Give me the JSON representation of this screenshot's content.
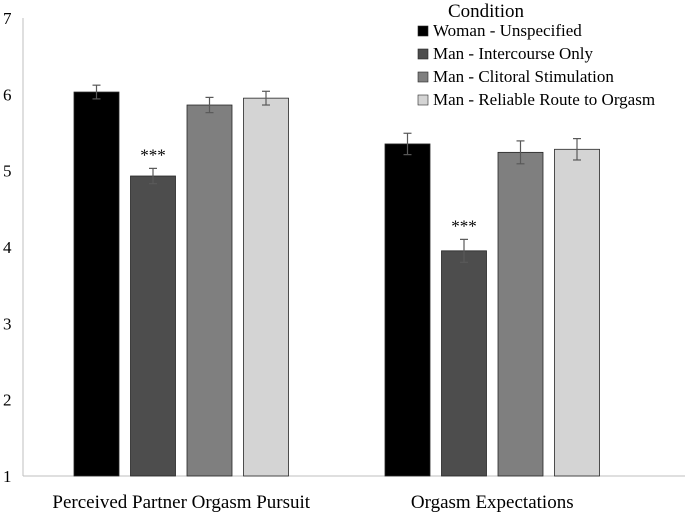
{
  "chart_data": {
    "type": "bar",
    "categories": [
      "Perceived Partner Orgasm Pursuit",
      "Orgasm Expectations"
    ],
    "series": [
      {
        "name": "Woman - Unspecified",
        "color": "#000000",
        "values": [
          6.03,
          5.35
        ],
        "errors": [
          0.09,
          0.14
        ]
      },
      {
        "name": "Man - Intercourse Only",
        "color": "#4d4d4d",
        "values": [
          4.93,
          3.95
        ],
        "errors": [
          0.1,
          0.15
        ]
      },
      {
        "name": "Man - Clitoral Stimulation",
        "color": "#7f7f7f",
        "values": [
          5.86,
          5.24
        ],
        "errors": [
          0.1,
          0.15
        ]
      },
      {
        "name": "Man - Reliable Route to Orgasm",
        "color": "#d4d4d4",
        "values": [
          5.95,
          5.28
        ],
        "errors": [
          0.09,
          0.14
        ]
      }
    ],
    "annotations": [
      {
        "category": 0,
        "series": 1,
        "text": "***"
      },
      {
        "category": 1,
        "series": 1,
        "text": "***"
      }
    ],
    "ylim": [
      1,
      7
    ],
    "yticks": [
      "1",
      "2",
      "3",
      "4",
      "5",
      "6",
      "7"
    ],
    "legend_title": "Condition",
    "legend_position": "top-right",
    "grid": false
  }
}
